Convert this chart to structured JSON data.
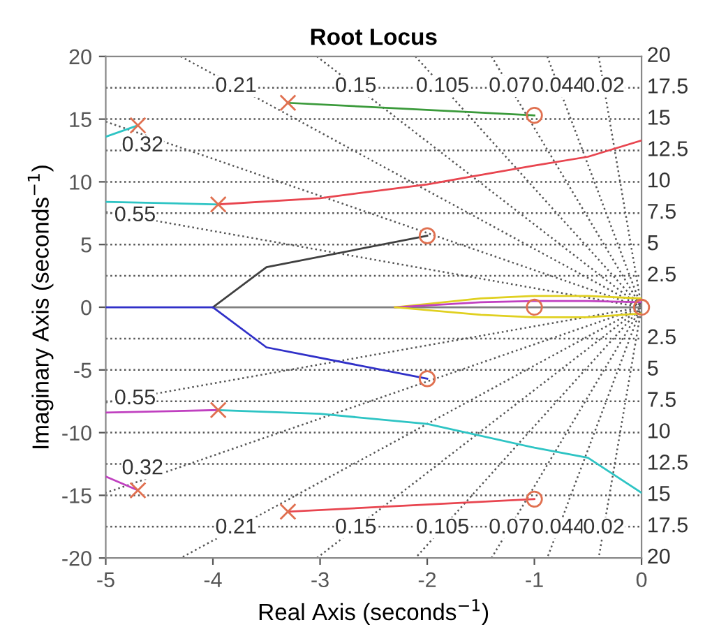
{
  "chart_data": {
    "type": "line",
    "title": "Root Locus",
    "xlabel": "Real Axis (seconds$^{−1}$)",
    "ylabel": "Imaginary Axis (seconds$^{−1}$)",
    "xlim": [
      -5,
      0
    ],
    "ylim": [
      -20,
      20
    ],
    "xticks": [
      -5,
      -4,
      -3,
      -2,
      -1,
      0
    ],
    "yticks": [
      -20,
      -15,
      -10,
      -5,
      0,
      5,
      10,
      15,
      20
    ],
    "legend": false,
    "annotations": [
      "20",
      "20"
    ],
    "series": [
      {
        "name": "17.5",
        "line_style": "dotted",
        "color": "#555555",
        "x": [
          -5,
          0
        ],
        "values": [
          17.5,
          17.5
        ]
      },
      {
        "name": "15",
        "line_style": "dotted",
        "color": "#555555",
        "x": [
          -5,
          0
        ],
        "values": [
          15,
          15
        ]
      },
      {
        "name": "12.5",
        "line_style": "dotted",
        "color": "#555555",
        "x": [
          -5,
          0
        ],
        "values": [
          12.5,
          12.5
        ]
      },
      {
        "name": "10",
        "line_style": "dotted",
        "color": "#555555",
        "x": [
          -5,
          0
        ],
        "values": [
          10,
          10
        ]
      },
      {
        "name": "7.5",
        "line_style": "dotted",
        "color": "#555555",
        "x": [
          -5,
          0
        ],
        "values": [
          7.5,
          7.5
        ]
      },
      {
        "name": "5",
        "line_style": "dotted",
        "color": "#555555",
        "x": [
          -5,
          0
        ],
        "values": [
          5,
          5
        ]
      },
      {
        "name": "2.5",
        "line_style": "dotted",
        "color": "#555555",
        "x": [
          -5,
          0
        ],
        "values": [
          2.5,
          2.5
        ]
      },
      {
        "name": "2.5",
        "line_style": "dotted",
        "color": "#555555",
        "x": [
          -5,
          0
        ],
        "values": [
          -2.5,
          -2.5
        ]
      },
      {
        "name": "5",
        "line_style": "dotted",
        "color": "#555555",
        "x": [
          -5,
          0
        ],
        "values": [
          -5,
          -5
        ]
      },
      {
        "name": "7.5",
        "line_style": "dotted",
        "color": "#555555",
        "x": [
          -5,
          0
        ],
        "values": [
          -7.5,
          -7.5
        ]
      },
      {
        "name": "10",
        "line_style": "dotted",
        "color": "#555555",
        "x": [
          -5,
          0
        ],
        "values": [
          -10,
          -10
        ]
      },
      {
        "name": "12.5",
        "line_style": "dotted",
        "color": "#555555",
        "x": [
          -5,
          0
        ],
        "values": [
          -12.5,
          -12.5
        ]
      },
      {
        "name": "15",
        "line_style": "dotted",
        "color": "#555555",
        "x": [
          -5,
          0
        ],
        "values": [
          -15,
          -15
        ]
      },
      {
        "name": "17.5",
        "line_style": "dotted",
        "color": "#555555",
        "x": [
          -5,
          0
        ],
        "values": [
          -17.5,
          -17.5
        ]
      },
      {
        "name": "0.21",
        "line_style": "dotted",
        "color": "#555555",
        "x": [
          -4.3,
          0,
          -4.3
        ],
        "values": [
          20,
          0,
          -20
        ]
      },
      {
        "name": "0.15",
        "line_style": "dotted",
        "color": "#555555",
        "x": [
          -3.03,
          0,
          -3.03
        ],
        "values": [
          20,
          0,
          -20
        ]
      },
      {
        "name": "0.105",
        "line_style": "dotted",
        "color": "#555555",
        "x": [
          -2.11,
          0,
          -2.11
        ],
        "values": [
          20,
          0,
          -20
        ]
      },
      {
        "name": "0.07",
        "line_style": "dotted",
        "color": "#555555",
        "x": [
          -1.4,
          0,
          -1.4
        ],
        "values": [
          20,
          0,
          -20
        ]
      },
      {
        "name": "0.044",
        "line_style": "dotted",
        "color": "#555555",
        "x": [
          -0.88,
          0,
          -0.88
        ],
        "values": [
          20,
          0,
          -20
        ]
      },
      {
        "name": "0.02",
        "line_style": "dotted",
        "color": "#555555",
        "x": [
          -0.4,
          0,
          -0.4
        ],
        "values": [
          20,
          0,
          -20
        ]
      },
      {
        "name": "0.32",
        "line_style": "dotted",
        "color": "#555555",
        "x": [
          -5,
          0,
          -5
        ],
        "values": [
          14.8,
          0,
          -14.8
        ]
      },
      {
        "name": "0.55",
        "line_style": "dotted",
        "color": "#555555",
        "x": [
          -5,
          0,
          -5
        ],
        "values": [
          7.6,
          0,
          -7.6
        ]
      },
      {
        "color": "#808080",
        "x": [
          -4,
          0
        ],
        "values": [
          0,
          0
        ]
      },
      {
        "color": "#e0d020",
        "x": [
          -2.3,
          -1.5,
          -1,
          -0.5,
          0
        ],
        "values": [
          0,
          0.7,
          0.9,
          0.9,
          0.7
        ]
      },
      {
        "color": "#c040c0",
        "x": [
          -2.3,
          -1.5,
          -1,
          -0.5,
          0
        ],
        "values": [
          0,
          0.4,
          0.5,
          0.5,
          0.4
        ]
      },
      {
        "color": "#e0d020",
        "x": [
          -2.3,
          -1.5,
          -1,
          -0.5,
          0
        ],
        "values": [
          0,
          -0.6,
          -0.8,
          -0.8,
          -0.5
        ]
      },
      {
        "color": "#3a9a3a",
        "x": [
          -3.3,
          -1
        ],
        "values": [
          16.3,
          15.3
        ]
      },
      {
        "color": "#e8454f",
        "x": [
          -3.95,
          -3,
          -2,
          -1,
          -0.5,
          0
        ],
        "values": [
          8.2,
          8.7,
          9.8,
          11.3,
          12,
          13.3
        ]
      },
      {
        "color": "#2ec4c4",
        "x": [
          -5,
          -3.95
        ],
        "values": [
          8.4,
          8.2
        ]
      },
      {
        "color": "#2ec4c4",
        "x": [
          -5,
          -4.7
        ],
        "values": [
          13.6,
          14.5
        ]
      },
      {
        "color": "#404040",
        "x": [
          -4,
          -3.5,
          -2
        ],
        "values": [
          0,
          3.2,
          5.7
        ]
      },
      {
        "color": "#3030c8",
        "x": [
          -5,
          -4,
          -3.5,
          -2
        ],
        "values": [
          0,
          0,
          -3.2,
          -5.7
        ]
      },
      {
        "color": "#c040c0",
        "x": [
          -5,
          -3.95
        ],
        "values": [
          -8.4,
          -8.2
        ]
      },
      {
        "color": "#2ec4c4",
        "x": [
          -3.95,
          -3,
          -2,
          -1,
          -0.5,
          0
        ],
        "values": [
          -8.2,
          -8.5,
          -9.3,
          -11.2,
          -12,
          -14.8
        ]
      },
      {
        "color": "#c040c0",
        "x": [
          -5,
          -4.7
        ],
        "values": [
          -13.5,
          -14.6
        ]
      },
      {
        "color": "#e8454f",
        "x": [
          -3.3,
          -1
        ],
        "values": [
          -16.3,
          -15.3
        ]
      },
      {
        "type": "scatter",
        "marker": "cross",
        "color": "#e07050",
        "x": [
          -3.3,
          -3.95,
          -4.7,
          -4.7,
          -3.95,
          -3.3
        ],
        "values": [
          16.3,
          8.2,
          14.5,
          -14.6,
          -8.2,
          -16.3
        ]
      },
      {
        "type": "scatter",
        "marker": "circle",
        "color": "#e07050",
        "x": [
          -1,
          -2,
          -1,
          -2,
          -1,
          0
        ],
        "values": [
          15.3,
          5.7,
          0,
          -5.7,
          -15.3,
          0
        ]
      }
    ]
  }
}
